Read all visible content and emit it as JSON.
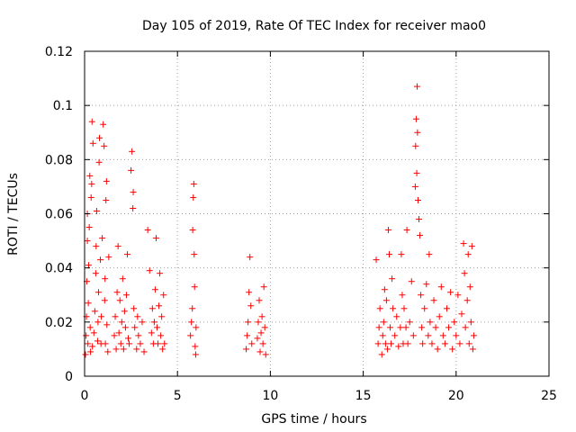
{
  "chart_data": {
    "type": "scatter",
    "title": "Day 105 of 2019, Rate Of TEC Index for receiver mao0",
    "xlabel": "GPS time / hours",
    "ylabel": "ROTI / TECUs",
    "xlim": [
      0,
      25
    ],
    "ylim": [
      0,
      0.12
    ],
    "xticks": [
      "0",
      "5",
      "10",
      "15",
      "20",
      "25"
    ],
    "yticks": [
      "0",
      "0.02",
      "0.04",
      "0.06",
      "0.08",
      "0.1",
      "0.12"
    ],
    "grid": true,
    "legend": "none",
    "marker": "+",
    "color": "#ff0000",
    "series": [
      {
        "name": "ROTI",
        "points": [
          [
            0.05,
            0.008
          ],
          [
            0.08,
            0.015
          ],
          [
            0.1,
            0.022
          ],
          [
            0.12,
            0.035
          ],
          [
            0.15,
            0.05
          ],
          [
            0.15,
            0.06
          ],
          [
            0.18,
            0.012
          ],
          [
            0.2,
            0.027
          ],
          [
            0.22,
            0.041
          ],
          [
            0.25,
            0.055
          ],
          [
            0.28,
            0.074
          ],
          [
            0.3,
            0.018
          ],
          [
            0.32,
            0.009
          ],
          [
            0.35,
            0.066
          ],
          [
            0.38,
            0.071
          ],
          [
            0.4,
            0.094
          ],
          [
            0.42,
            0.011
          ],
          [
            0.45,
            0.086
          ],
          [
            0.5,
            0.016
          ],
          [
            0.55,
            0.024
          ],
          [
            0.6,
            0.038
          ],
          [
            0.62,
            0.048
          ],
          [
            0.65,
            0.061
          ],
          [
            0.7,
            0.013
          ],
          [
            0.72,
            0.02
          ],
          [
            0.75,
            0.031
          ],
          [
            0.78,
            0.079
          ],
          [
            0.8,
            0.088
          ],
          [
            0.85,
            0.043
          ],
          [
            0.88,
            0.012
          ],
          [
            0.9,
            0.022
          ],
          [
            0.95,
            0.051
          ],
          [
            1.0,
            0.093
          ],
          [
            1.05,
            0.085
          ],
          [
            1.08,
            0.028
          ],
          [
            1.1,
            0.036
          ],
          [
            1.12,
            0.012
          ],
          [
            1.15,
            0.065
          ],
          [
            1.18,
            0.072
          ],
          [
            1.2,
            0.019
          ],
          [
            1.25,
            0.009
          ],
          [
            1.3,
            0.044
          ],
          [
            1.6,
            0.015
          ],
          [
            1.65,
            0.022
          ],
          [
            1.7,
            0.01
          ],
          [
            1.75,
            0.031
          ],
          [
            1.8,
            0.048
          ],
          [
            1.85,
            0.016
          ],
          [
            1.9,
            0.028
          ],
          [
            1.95,
            0.012
          ],
          [
            2.0,
            0.02
          ],
          [
            2.05,
            0.036
          ],
          [
            2.1,
            0.01
          ],
          [
            2.15,
            0.024
          ],
          [
            2.2,
            0.018
          ],
          [
            2.25,
            0.03
          ],
          [
            2.3,
            0.045
          ],
          [
            2.35,
            0.014
          ],
          [
            2.4,
            0.012
          ],
          [
            2.5,
            0.076
          ],
          [
            2.55,
            0.083
          ],
          [
            2.6,
            0.062
          ],
          [
            2.62,
            0.068
          ],
          [
            2.65,
            0.025
          ],
          [
            2.7,
            0.018
          ],
          [
            2.8,
            0.01
          ],
          [
            2.85,
            0.022
          ],
          [
            2.9,
            0.015
          ],
          [
            3.0,
            0.012
          ],
          [
            3.1,
            0.02
          ],
          [
            3.2,
            0.009
          ],
          [
            3.4,
            0.054
          ],
          [
            3.5,
            0.039
          ],
          [
            3.6,
            0.016
          ],
          [
            3.65,
            0.025
          ],
          [
            3.7,
            0.012
          ],
          [
            3.75,
            0.02
          ],
          [
            3.8,
            0.032
          ],
          [
            3.85,
            0.051
          ],
          [
            3.9,
            0.018
          ],
          [
            3.95,
            0.012
          ],
          [
            4.0,
            0.026
          ],
          [
            4.05,
            0.038
          ],
          [
            4.1,
            0.015
          ],
          [
            4.15,
            0.022
          ],
          [
            4.2,
            0.01
          ],
          [
            4.25,
            0.03
          ],
          [
            4.3,
            0.012
          ],
          [
            5.7,
            0.015
          ],
          [
            5.75,
            0.02
          ],
          [
            5.8,
            0.025
          ],
          [
            5.82,
            0.054
          ],
          [
            5.85,
            0.066
          ],
          [
            5.88,
            0.071
          ],
          [
            5.9,
            0.045
          ],
          [
            5.92,
            0.033
          ],
          [
            5.95,
            0.011
          ],
          [
            5.98,
            0.008
          ],
          [
            6.0,
            0.018
          ],
          [
            8.7,
            0.01
          ],
          [
            8.75,
            0.015
          ],
          [
            8.8,
            0.02
          ],
          [
            8.85,
            0.031
          ],
          [
            8.9,
            0.044
          ],
          [
            8.95,
            0.026
          ],
          [
            9.0,
            0.012
          ],
          [
            9.3,
            0.014
          ],
          [
            9.35,
            0.02
          ],
          [
            9.4,
            0.028
          ],
          [
            9.45,
            0.009
          ],
          [
            9.5,
            0.016
          ],
          [
            9.55,
            0.022
          ],
          [
            9.6,
            0.012
          ],
          [
            9.65,
            0.033
          ],
          [
            9.7,
            0.018
          ],
          [
            9.75,
            0.008
          ],
          [
            15.7,
            0.043
          ],
          [
            15.8,
            0.012
          ],
          [
            15.85,
            0.018
          ],
          [
            15.9,
            0.025
          ],
          [
            16.0,
            0.008
          ],
          [
            16.05,
            0.015
          ],
          [
            16.1,
            0.02
          ],
          [
            16.15,
            0.032
          ],
          [
            16.2,
            0.012
          ],
          [
            16.25,
            0.028
          ],
          [
            16.3,
            0.01
          ],
          [
            16.35,
            0.054
          ],
          [
            16.4,
            0.045
          ],
          [
            16.45,
            0.018
          ],
          [
            16.5,
            0.012
          ],
          [
            16.55,
            0.036
          ],
          [
            16.6,
            0.025
          ],
          [
            16.7,
            0.015
          ],
          [
            16.8,
            0.022
          ],
          [
            16.9,
            0.011
          ],
          [
            17.0,
            0.018
          ],
          [
            17.05,
            0.045
          ],
          [
            17.1,
            0.03
          ],
          [
            17.15,
            0.012
          ],
          [
            17.2,
            0.025
          ],
          [
            17.3,
            0.018
          ],
          [
            17.35,
            0.054
          ],
          [
            17.4,
            0.012
          ],
          [
            17.5,
            0.02
          ],
          [
            17.6,
            0.035
          ],
          [
            17.7,
            0.015
          ],
          [
            17.8,
            0.07
          ],
          [
            17.82,
            0.085
          ],
          [
            17.85,
            0.095
          ],
          [
            17.88,
            0.075
          ],
          [
            17.9,
            0.107
          ],
          [
            17.92,
            0.09
          ],
          [
            17.95,
            0.065
          ],
          [
            18.0,
            0.058
          ],
          [
            18.05,
            0.052
          ],
          [
            18.1,
            0.03
          ],
          [
            18.15,
            0.018
          ],
          [
            18.2,
            0.012
          ],
          [
            18.3,
            0.025
          ],
          [
            18.4,
            0.034
          ],
          [
            18.5,
            0.015
          ],
          [
            18.55,
            0.045
          ],
          [
            18.6,
            0.02
          ],
          [
            18.7,
            0.012
          ],
          [
            18.8,
            0.028
          ],
          [
            18.9,
            0.018
          ],
          [
            19.0,
            0.01
          ],
          [
            19.1,
            0.022
          ],
          [
            19.2,
            0.033
          ],
          [
            19.3,
            0.015
          ],
          [
            19.4,
            0.012
          ],
          [
            19.5,
            0.025
          ],
          [
            19.6,
            0.018
          ],
          [
            19.7,
            0.031
          ],
          [
            19.8,
            0.01
          ],
          [
            19.9,
            0.02
          ],
          [
            20.0,
            0.015
          ],
          [
            20.1,
            0.03
          ],
          [
            20.2,
            0.012
          ],
          [
            20.3,
            0.023
          ],
          [
            20.4,
            0.049
          ],
          [
            20.45,
            0.038
          ],
          [
            20.5,
            0.018
          ],
          [
            20.6,
            0.028
          ],
          [
            20.65,
            0.045
          ],
          [
            20.7,
            0.012
          ],
          [
            20.75,
            0.033
          ],
          [
            20.8,
            0.02
          ],
          [
            20.85,
            0.048
          ],
          [
            20.9,
            0.01
          ],
          [
            20.95,
            0.015
          ]
        ]
      }
    ]
  }
}
